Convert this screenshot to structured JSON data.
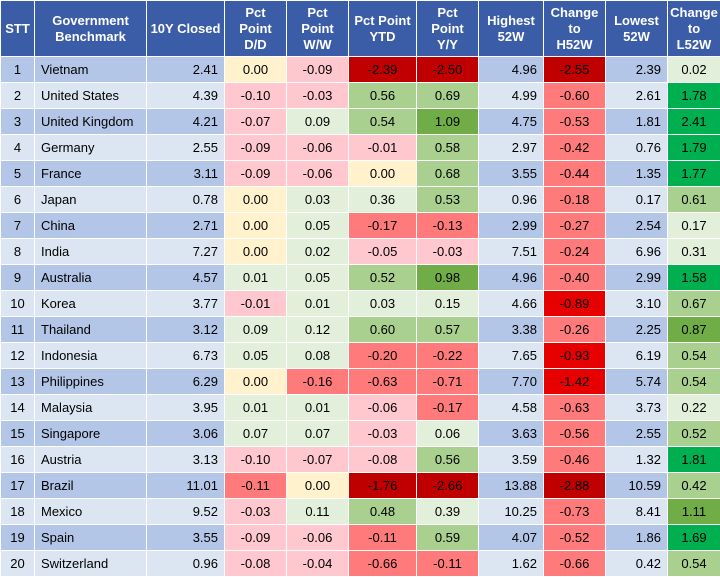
{
  "header": {
    "stt": "STT",
    "benchmark": [
      "Government",
      "Benchmark"
    ],
    "closed": "10Y Closed",
    "dd": [
      "Pct",
      "Point",
      "D/D"
    ],
    "ww": [
      "Pct",
      "Point",
      "W/W"
    ],
    "ytd": [
      "Pct Point",
      "YTD"
    ],
    "yy": [
      "Pct",
      "Point",
      "Y/Y"
    ],
    "high": [
      "Highest",
      "52W"
    ],
    "chigh": [
      "Change",
      "to",
      "H52W"
    ],
    "low": [
      "Lowest",
      "52W"
    ],
    "clow": [
      "Change",
      "to",
      "L52W"
    ]
  },
  "colors": {
    "header_bg": "#3b5ca6",
    "row_odd": "#b4c6e7",
    "row_even": "#dce6f2",
    "neg_light": "#ffc7ce",
    "neg_mid": "#ff7b7b",
    "neg_strong": "#e60000",
    "neg_dark": "#c00000",
    "zero": "#fff2cc",
    "pos_light": "#e2efda",
    "pos_mid": "#a9d08e",
    "pos_strong": "#70ad47",
    "pos_dark": "#00b050"
  },
  "rows": [
    {
      "stt": "1",
      "name": "Vietnam",
      "closed": "2.41",
      "dd": "0.00",
      "ww": "-0.09",
      "ytd": "-2.39",
      "yy": "-2.50",
      "high": "4.96",
      "chigh": "-2.55",
      "low": "2.39",
      "clow": "0.02"
    },
    {
      "stt": "2",
      "name": "United States",
      "closed": "4.39",
      "dd": "-0.10",
      "ww": "-0.03",
      "ytd": "0.56",
      "yy": "0.69",
      "high": "4.99",
      "chigh": "-0.60",
      "low": "2.61",
      "clow": "1.78"
    },
    {
      "stt": "3",
      "name": "United Kingdom",
      "closed": "4.21",
      "dd": "-0.07",
      "ww": "0.09",
      "ytd": "0.54",
      "yy": "1.09",
      "high": "4.75",
      "chigh": "-0.53",
      "low": "1.81",
      "clow": "2.41"
    },
    {
      "stt": "4",
      "name": "Germany",
      "closed": "2.55",
      "dd": "-0.09",
      "ww": "-0.06",
      "ytd": "-0.01",
      "yy": "0.58",
      "high": "2.97",
      "chigh": "-0.42",
      "low": "0.76",
      "clow": "1.79"
    },
    {
      "stt": "5",
      "name": "France",
      "closed": "3.11",
      "dd": "-0.09",
      "ww": "-0.06",
      "ytd": "0.00",
      "yy": "0.68",
      "high": "3.55",
      "chigh": "-0.44",
      "low": "1.35",
      "clow": "1.77"
    },
    {
      "stt": "6",
      "name": "Japan",
      "closed": "0.78",
      "dd": "0.00",
      "ww": "0.03",
      "ytd": "0.36",
      "yy": "0.53",
      "high": "0.96",
      "chigh": "-0.18",
      "low": "0.17",
      "clow": "0.61"
    },
    {
      "stt": "7",
      "name": "China",
      "closed": "2.71",
      "dd": "0.00",
      "ww": "0.05",
      "ytd": "-0.17",
      "yy": "-0.13",
      "high": "2.99",
      "chigh": "-0.27",
      "low": "2.54",
      "clow": "0.17"
    },
    {
      "stt": "8",
      "name": "India",
      "closed": "7.27",
      "dd": "0.00",
      "ww": "0.02",
      "ytd": "-0.05",
      "yy": "-0.03",
      "high": "7.51",
      "chigh": "-0.24",
      "low": "6.96",
      "clow": "0.31"
    },
    {
      "stt": "9",
      "name": "Australia",
      "closed": "4.57",
      "dd": "0.01",
      "ww": "0.05",
      "ytd": "0.52",
      "yy": "0.98",
      "high": "4.96",
      "chigh": "-0.40",
      "low": "2.99",
      "clow": "1.58"
    },
    {
      "stt": "10",
      "name": "Korea",
      "closed": "3.77",
      "dd": "-0.01",
      "ww": "0.01",
      "ytd": "0.03",
      "yy": "0.15",
      "high": "4.66",
      "chigh": "-0.89",
      "low": "3.10",
      "clow": "0.67"
    },
    {
      "stt": "11",
      "name": "Thailand",
      "closed": "3.12",
      "dd": "0.09",
      "ww": "0.12",
      "ytd": "0.60",
      "yy": "0.57",
      "high": "3.38",
      "chigh": "-0.26",
      "low": "2.25",
      "clow": "0.87"
    },
    {
      "stt": "12",
      "name": "Indonesia",
      "closed": "6.73",
      "dd": "0.05",
      "ww": "0.08",
      "ytd": "-0.20",
      "yy": "-0.22",
      "high": "7.65",
      "chigh": "-0.93",
      "low": "6.19",
      "clow": "0.54"
    },
    {
      "stt": "13",
      "name": "Philippines",
      "closed": "6.29",
      "dd": "0.00",
      "ww": "-0.16",
      "ytd": "-0.63",
      "yy": "-0.71",
      "high": "7.70",
      "chigh": "-1.42",
      "low": "5.74",
      "clow": "0.54"
    },
    {
      "stt": "14",
      "name": "Malaysia",
      "closed": "3.95",
      "dd": "0.01",
      "ww": "0.01",
      "ytd": "-0.06",
      "yy": "-0.17",
      "high": "4.58",
      "chigh": "-0.63",
      "low": "3.73",
      "clow": "0.22"
    },
    {
      "stt": "15",
      "name": "Singapore",
      "closed": "3.06",
      "dd": "0.07",
      "ww": "0.07",
      "ytd": "-0.03",
      "yy": "0.06",
      "high": "3.63",
      "chigh": "-0.56",
      "low": "2.55",
      "clow": "0.52"
    },
    {
      "stt": "16",
      "name": "Austria",
      "closed": "3.13",
      "dd": "-0.10",
      "ww": "-0.07",
      "ytd": "-0.08",
      "yy": "0.56",
      "high": "3.59",
      "chigh": "-0.46",
      "low": "1.32",
      "clow": "1.81"
    },
    {
      "stt": "17",
      "name": "Brazil",
      "closed": "11.01",
      "dd": "-0.11",
      "ww": "0.00",
      "ytd": "-1.76",
      "yy": "-2.66",
      "high": "13.88",
      "chigh": "-2.88",
      "low": "10.59",
      "clow": "0.42"
    },
    {
      "stt": "18",
      "name": "Mexico",
      "closed": "9.52",
      "dd": "-0.03",
      "ww": "0.11",
      "ytd": "0.48",
      "yy": "0.39",
      "high": "10.25",
      "chigh": "-0.73",
      "low": "8.41",
      "clow": "1.11"
    },
    {
      "stt": "19",
      "name": "Spain",
      "closed": "3.55",
      "dd": "-0.09",
      "ww": "-0.06",
      "ytd": "-0.11",
      "yy": "0.59",
      "high": "4.07",
      "chigh": "-0.52",
      "low": "1.86",
      "clow": "1.69"
    },
    {
      "stt": "20",
      "name": "Switzerland",
      "closed": "0.96",
      "dd": "-0.08",
      "ww": "-0.04",
      "ytd": "-0.66",
      "yy": "-0.11",
      "high": "1.62",
      "chigh": "-0.66",
      "low": "0.42",
      "clow": "0.54"
    }
  ]
}
